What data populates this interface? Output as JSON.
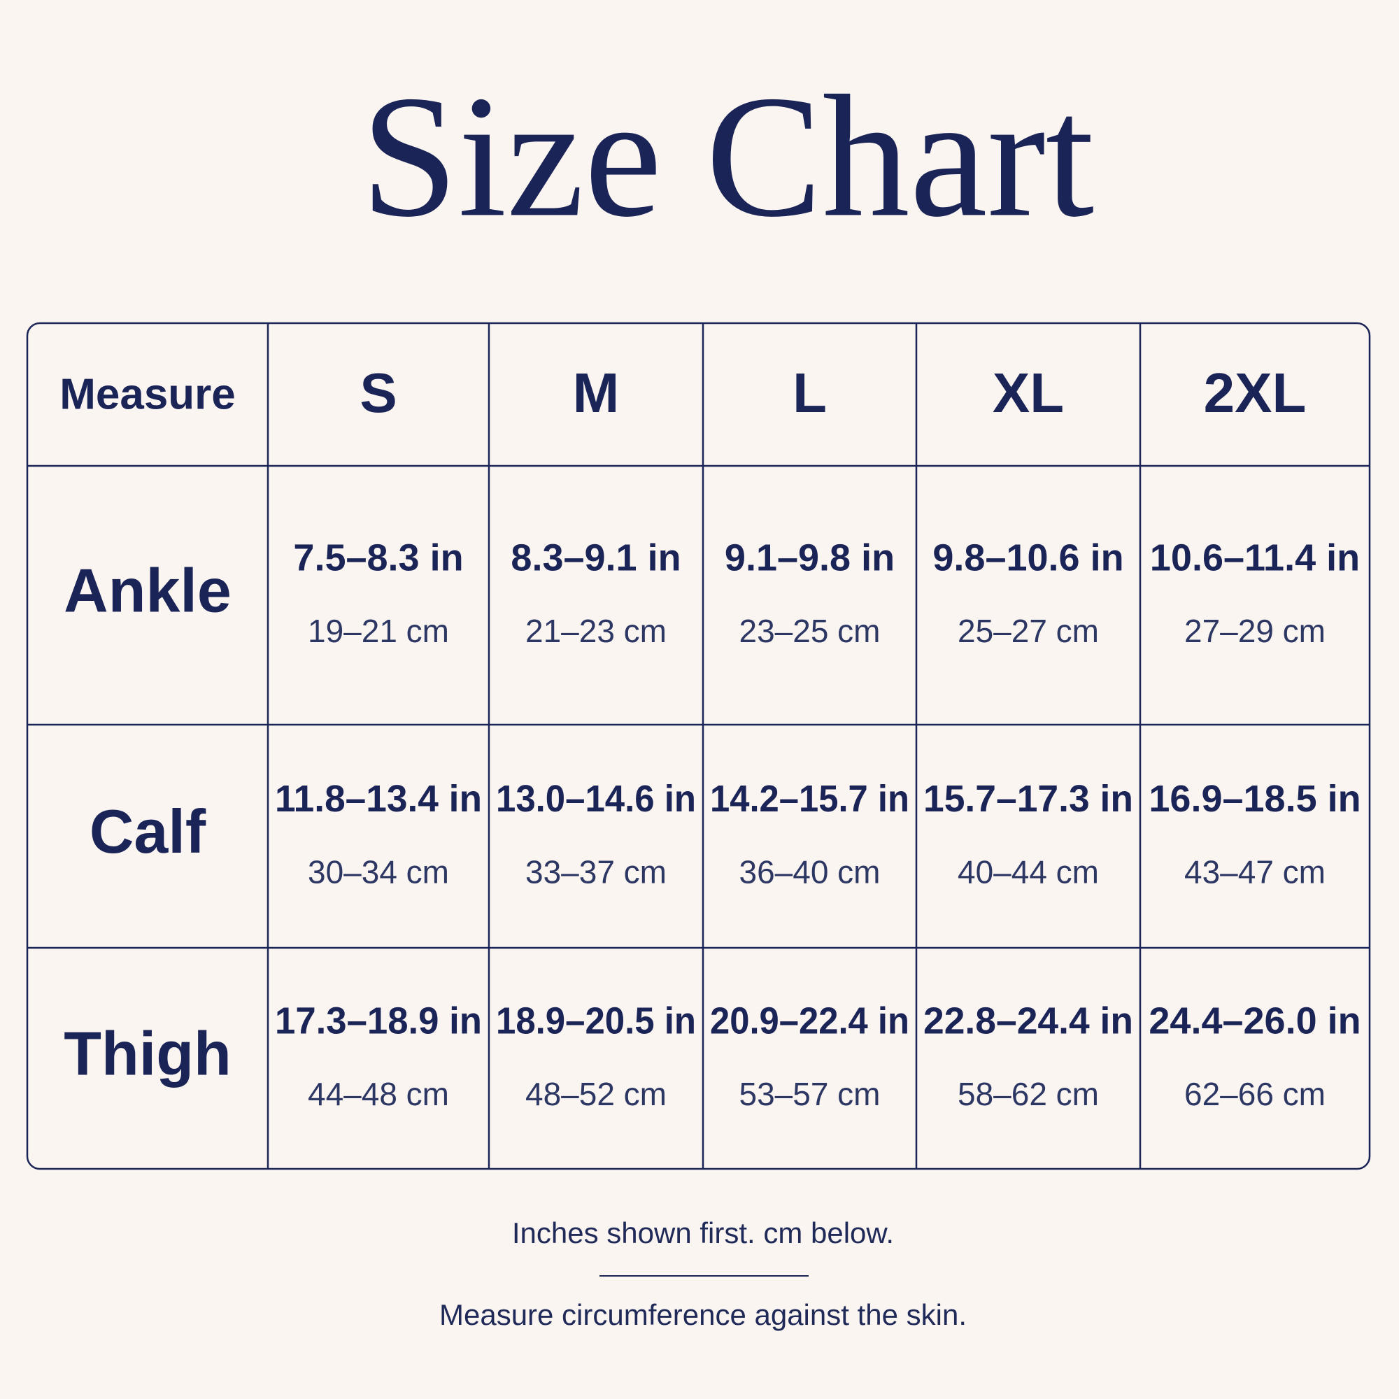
{
  "header": {
    "title": "Size Chart"
  },
  "table": {
    "columns": [
      "Measure",
      "S",
      "M",
      "L",
      "XL",
      "2XL"
    ],
    "rows": [
      {
        "label": "Ankle",
        "cells": [
          {
            "in": "7.5–8.3 in",
            "cm": "19–21 cm"
          },
          {
            "in": "8.3–9.1 in",
            "cm": "21–23 cm"
          },
          {
            "in": "9.1–9.8 in",
            "cm": "23–25 cm"
          },
          {
            "in": "9.8–10.6 in",
            "cm": "25–27 cm"
          },
          {
            "in": "10.6–11.4 in",
            "cm": "27–29 cm"
          }
        ]
      },
      {
        "label": "Calf",
        "cells": [
          {
            "in": "11.8–13.4 in",
            "cm": "30–34 cm"
          },
          {
            "in": "13.0–14.6 in",
            "cm": "33–37 cm"
          },
          {
            "in": "14.2–15.7 in",
            "cm": "36–40 cm"
          },
          {
            "in": "15.7–17.3 in",
            "cm": "40–44 cm"
          },
          {
            "in": "16.9–18.5 in",
            "cm": "43–47 cm"
          }
        ]
      },
      {
        "label": "Thigh",
        "cells": [
          {
            "in": "17.3–18.9 in",
            "cm": "44–48 cm"
          },
          {
            "in": "18.9–20.5 in",
            "cm": "48–52 cm"
          },
          {
            "in": "20.9–22.4 in",
            "cm": "53–57 cm"
          },
          {
            "in": "22.8–24.4 in",
            "cm": "58–62 cm"
          },
          {
            "in": "24.4–26.0 in",
            "cm": "62–66 cm"
          }
        ]
      }
    ]
  },
  "footer": {
    "note": "Inches shown first. cm below.",
    "instruction": "Measure circumference against the skin."
  }
}
